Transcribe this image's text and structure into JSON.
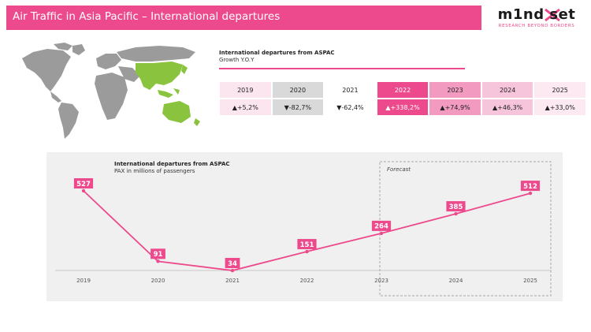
{
  "header": {
    "title": "Air Traffic in Asia Pacific – International departures"
  },
  "logo": {
    "word": "m1nd set",
    "tagline": "RESEARCH BEYOND BORDERS"
  },
  "growth_table": {
    "title": "International departures from ASPAC",
    "subtitle": "Growth Y.O.Y",
    "years": [
      "2019",
      "2020",
      "2021",
      "2022",
      "2023",
      "2024",
      "2025"
    ],
    "values": [
      "▲+5,2%",
      "▼-82,7%",
      "▼-62,4%",
      "▲+338,2%",
      "▲+74,9%",
      "▲+46,3%",
      "▲+33,0%"
    ],
    "column_colors": [
      "#fbe6ef",
      "#d9d9d9",
      "#ffffff",
      "#ec4a8c",
      "#f39ac0",
      "#f7c5db",
      "#fde9f1"
    ],
    "header_text_colors": [
      "#222222",
      "#222222",
      "#222222",
      "#ffffff",
      "#222222",
      "#222222",
      "#222222"
    ],
    "value_text_colors": [
      "#222222",
      "#222222",
      "#222222",
      "#ffffff",
      "#222222",
      "#222222",
      "#222222"
    ]
  },
  "chart": {
    "title": "International departures from ASPAC",
    "subtitle": "PAX in millions of passengers",
    "forecast_label": "Forecast"
  },
  "colors": {
    "accent": "#ec4a8c",
    "map_land": "#9b9b9b",
    "map_highlight": "#8ac43f",
    "panel": "#f0f0f0"
  },
  "chart_data": {
    "type": "line",
    "categories": [
      "2019",
      "2020",
      "2021",
      "2022",
      "2023",
      "2024",
      "2025"
    ],
    "series": [
      {
        "values": [
          527,
          91,
          34,
          151,
          264,
          385,
          512
        ]
      }
    ],
    "data_labels": [
      "527",
      "91",
      "34",
      "151",
      "264",
      "385",
      "512"
    ],
    "title": "International departures from ASPAC",
    "subtitle": "PAX in millions of passengers",
    "forecast_range": [
      "2023",
      "2025"
    ],
    "forecast_label": "Forecast",
    "legend": "none",
    "grid": false,
    "ylim": [
      0,
      600
    ]
  }
}
